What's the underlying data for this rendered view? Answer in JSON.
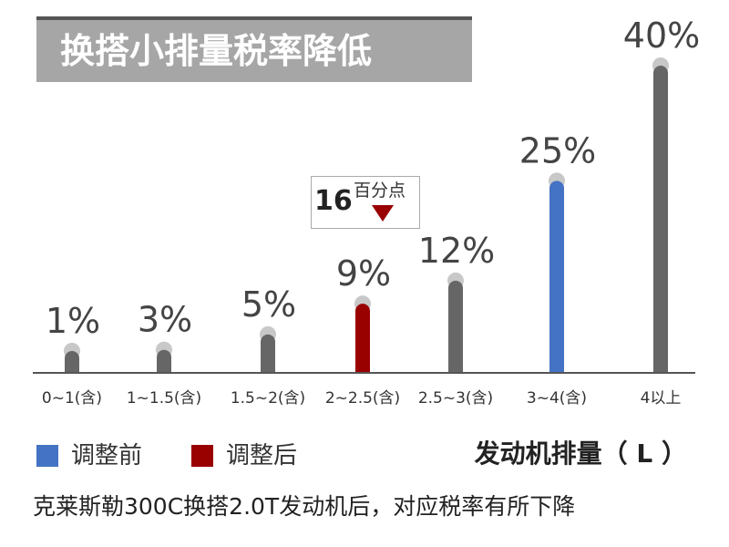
{
  "chart_data": {
    "type": "bar",
    "title": "换搭小排量税率降低",
    "categories": [
      "0~1(含)",
      "1~1.5(含)",
      "1.5~2(含)",
      "2~2.5(含)",
      "2.5~3(含)",
      "3~4(含)",
      "4以上"
    ],
    "series": [
      {
        "values": [
          1,
          3,
          5,
          9,
          12,
          25,
          40
        ],
        "data_labels": [
          "1%",
          "3%",
          "5%",
          "9%",
          "12%",
          "25%",
          "40%"
        ],
        "highlight": {
          "2~2.5(含)": "调整后",
          "3~4(含)": "调整前"
        }
      }
    ],
    "ylim": [
      0,
      40
    ],
    "grid": false,
    "xlabel": "发动机排量（ L ）",
    "ylabel": "",
    "annotation": {
      "value": "16",
      "unit": "百分点",
      "category": "2~2.5(含)"
    },
    "legend": {
      "placement": "bottom-left",
      "items": [
        {
          "label": "调整前",
          "color": "#4472c4"
        },
        {
          "label": "调整后",
          "color": "#990000"
        }
      ]
    },
    "colors": {
      "default": "#666666",
      "cap": "#c8c8c8",
      "before": "#4472c4",
      "after": "#990000"
    }
  },
  "caption": "克莱斯勒300C换搭2.0T发动机后，对应税率有所下降"
}
